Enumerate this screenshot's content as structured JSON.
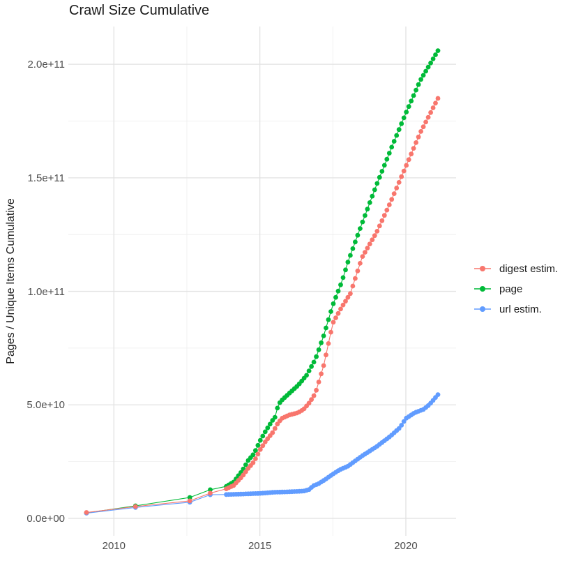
{
  "title": "Crawl Size Cumulative",
  "legend": {
    "items": [
      {
        "label": "digest estim.",
        "color": "#F8766D"
      },
      {
        "label": "page",
        "color": "#00BA38"
      },
      {
        "label": "url estim.",
        "color": "#619CFF"
      }
    ]
  },
  "chart_data": {
    "type": "scatter",
    "title": "Crawl Size Cumulative",
    "xlabel": "",
    "ylabel": "Pages / Unique Items Cumulative",
    "grid": true,
    "legend_position": "right",
    "x_domain": [
      2008.44,
      2021.72
    ],
    "y_domain": [
      -7700000000,
      216640000000
    ],
    "x_ticks": [
      {
        "label": "2010",
        "value": 2010
      },
      {
        "label": "2015",
        "value": 2015
      },
      {
        "label": "2020",
        "value": 2020
      }
    ],
    "x_minor_gridlines": [
      2012.5,
      2017.5
    ],
    "y_ticks": [
      {
        "label": "0.0e+00",
        "value": 0
      },
      {
        "label": "5.0e+10",
        "value": 50000000000
      },
      {
        "label": "1.0e+11",
        "value": 100000000000
      },
      {
        "label": "1.5e+11",
        "value": 150000000000
      },
      {
        "label": "2.0e+11",
        "value": 200000000000
      }
    ],
    "y_minor_gridlines": [
      25000000000,
      75000000000,
      125000000000,
      175000000000
    ],
    "value_unit": 1000000000,
    "sample_interval_years": 0.08333,
    "render_order": [
      1,
      2,
      0
    ],
    "series": [
      {
        "name": "digest estim.",
        "color": "#F8766D",
        "early_points": [
          [
            2009.06,
            2.6
          ],
          [
            2010.74,
            5.2
          ],
          [
            2012.6,
            7.7
          ],
          [
            2013.3,
            11.1
          ]
        ],
        "anchor_points": [
          [
            2013.85,
            13
          ],
          [
            2014.1,
            14.5
          ],
          [
            2014.4,
            18.5
          ],
          [
            2014.6,
            22
          ],
          [
            2014.8,
            25
          ],
          [
            2015.0,
            30
          ],
          [
            2015.2,
            34
          ],
          [
            2015.45,
            38
          ],
          [
            2015.62,
            42
          ],
          [
            2015.75,
            44
          ],
          [
            2016.0,
            45.5
          ],
          [
            2016.3,
            46.5
          ],
          [
            2016.5,
            48
          ],
          [
            2016.7,
            51
          ],
          [
            2016.9,
            55
          ],
          [
            2017.2,
            68
          ],
          [
            2017.5,
            86
          ],
          [
            2017.8,
            93
          ],
          [
            2018.1,
            99
          ],
          [
            2018.5,
            115
          ],
          [
            2019.0,
            126
          ],
          [
            2019.5,
            140
          ],
          [
            2020.0,
            155
          ],
          [
            2020.5,
            170
          ],
          [
            2021.1,
            185
          ]
        ]
      },
      {
        "name": "page",
        "color": "#00BA38",
        "early_points": [
          [
            2009.06,
            2.4
          ],
          [
            2010.74,
            5.5
          ],
          [
            2012.6,
            9.2
          ],
          [
            2013.3,
            12.6
          ]
        ],
        "anchor_points": [
          [
            2013.85,
            14.1
          ],
          [
            2014.1,
            16
          ],
          [
            2014.4,
            21
          ],
          [
            2014.6,
            25.5
          ],
          [
            2014.8,
            28.5
          ],
          [
            2015.0,
            34
          ],
          [
            2015.2,
            38.5
          ],
          [
            2015.45,
            43.5
          ],
          [
            2015.55,
            45
          ],
          [
            2015.62,
            50
          ],
          [
            2015.75,
            52
          ],
          [
            2016.0,
            55
          ],
          [
            2016.3,
            58.5
          ],
          [
            2016.6,
            63
          ],
          [
            2016.9,
            70
          ],
          [
            2017.2,
            81
          ],
          [
            2017.5,
            94
          ],
          [
            2017.8,
            104
          ],
          [
            2018.02,
            113
          ],
          [
            2018.5,
            130
          ],
          [
            2019.0,
            147
          ],
          [
            2019.5,
            163
          ],
          [
            2020.0,
            178.5
          ],
          [
            2020.5,
            193
          ],
          [
            2021.1,
            206
          ]
        ]
      },
      {
        "name": "url estim.",
        "color": "#619CFF",
        "early_points": [
          [
            2009.06,
            2.3
          ],
          [
            2010.74,
            4.8
          ],
          [
            2012.6,
            7.1
          ],
          [
            2013.3,
            10.4
          ]
        ],
        "anchor_points": [
          [
            2013.85,
            10.5
          ],
          [
            2014.4,
            10.7
          ],
          [
            2015.0,
            11.0
          ],
          [
            2015.5,
            11.5
          ],
          [
            2016.0,
            11.7
          ],
          [
            2016.5,
            12.0
          ],
          [
            2016.72,
            12.8
          ],
          [
            2016.8,
            14.2
          ],
          [
            2017.0,
            15.2
          ],
          [
            2017.25,
            17.2
          ],
          [
            2017.5,
            19.5
          ],
          [
            2017.75,
            21.5
          ],
          [
            2018.02,
            23
          ],
          [
            2018.5,
            27.5
          ],
          [
            2019.0,
            31.6
          ],
          [
            2019.5,
            36.5
          ],
          [
            2019.8,
            40
          ],
          [
            2020.0,
            44
          ],
          [
            2020.3,
            46.5
          ],
          [
            2020.6,
            48
          ],
          [
            2020.8,
            50
          ],
          [
            2021.1,
            54.5
          ]
        ]
      }
    ]
  }
}
